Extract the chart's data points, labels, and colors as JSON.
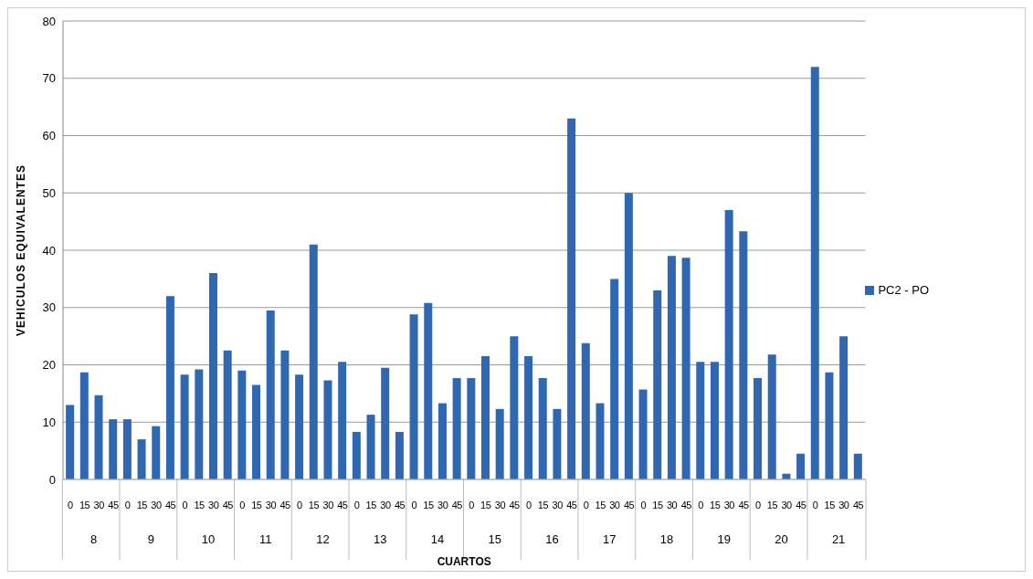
{
  "chart_data": {
    "type": "bar",
    "xlabel": "CUARTOS",
    "ylabel": "VEHICULOS EQUIVALENTES",
    "categories": [
      "0",
      "15",
      "30",
      "45",
      "0",
      "15",
      "30",
      "45",
      "0",
      "15",
      "30",
      "45",
      "0",
      "15",
      "30",
      "45",
      "0",
      "15",
      "30",
      "45",
      "0",
      "15",
      "30",
      "45",
      "0",
      "15",
      "30",
      "45",
      "0",
      "15",
      "30",
      "45",
      "0",
      "15",
      "30",
      "45",
      "0",
      "15",
      "30",
      "45",
      "0",
      "15",
      "30",
      "45",
      "0",
      "15",
      "30",
      "45",
      "0",
      "15",
      "30",
      "45",
      "0",
      "15",
      "30",
      "45"
    ],
    "annotations": [
      "8",
      "9",
      "10",
      "11",
      "12",
      "13",
      "14",
      "15",
      "16",
      "17",
      "18",
      "19",
      "20",
      "21"
    ],
    "series": [
      {
        "name": "PC2 - PO",
        "color": "#2f68b0",
        "values": [
          13,
          18.7,
          14.7,
          10.5,
          10.5,
          7,
          9.3,
          32,
          18.3,
          19.2,
          36,
          22.5,
          19,
          16.5,
          29.5,
          22.5,
          18.3,
          41,
          17.3,
          20.5,
          8.3,
          11.3,
          19.5,
          8.3,
          28.8,
          30.8,
          13.3,
          17.7,
          17.7,
          21.5,
          12.3,
          25,
          21.5,
          17.7,
          12.3,
          63,
          23.8,
          13.3,
          35,
          50,
          15.7,
          33,
          39,
          38.7,
          20.5,
          20.5,
          47,
          43.3,
          17.7,
          21.8,
          1,
          4.5,
          72,
          18.7,
          25,
          4.5
        ]
      }
    ],
    "ylim": [
      0,
      80
    ],
    "yticks": [
      0,
      10,
      20,
      30,
      40,
      50,
      60,
      70,
      80
    ],
    "grid": "y",
    "legend": "right"
  }
}
